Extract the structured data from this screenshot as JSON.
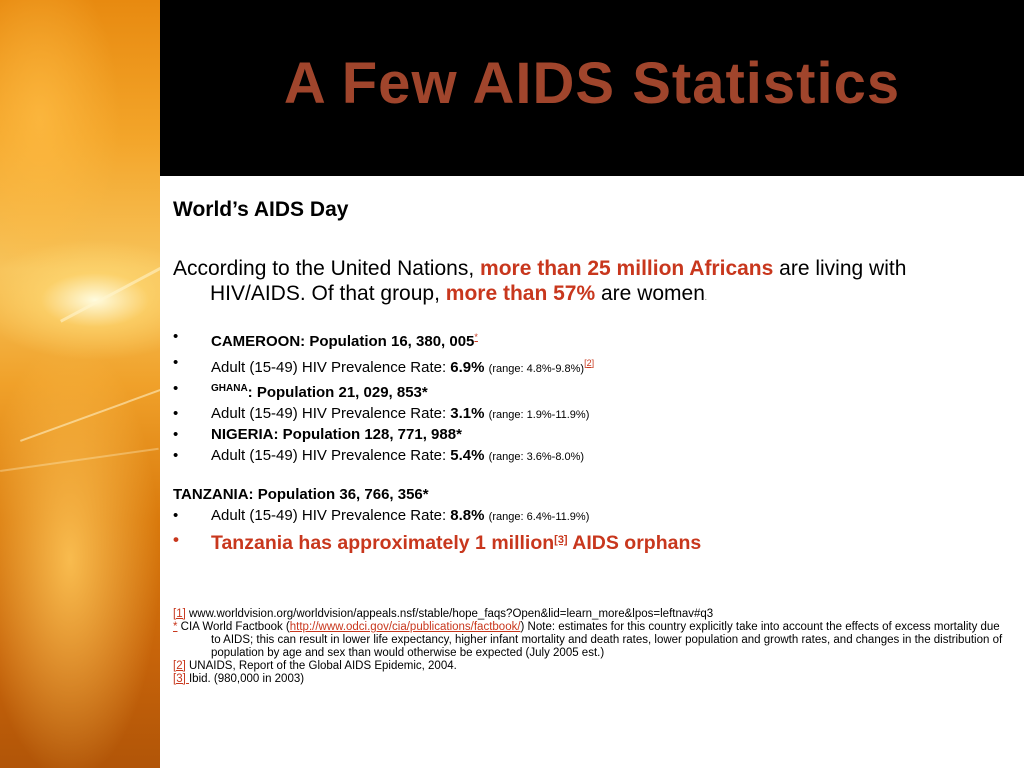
{
  "slide": {
    "title": "A Few AIDS Statistics",
    "subtitle": "World’s AIDS Day",
    "intro": {
      "part1": "According to the United Nations, ",
      "highlight1": "more than 25 million Africans",
      "part2": " are living with HIV/AIDS.  Of that group, ",
      "highlight2": "more than 57%",
      "part3": " are women",
      "trail": "."
    },
    "bullet": "•",
    "items": {
      "cameroon_pop": "CAMEROON:  Population 16, 380, 005",
      "cameroon_pop_ref": "*",
      "cameroon_rate_label": "Adult (15-49) HIV Prevalence Rate: ",
      "cameroon_rate": "6.9%",
      "cameroon_range": "(range: 4.8%-9.8%)",
      "cameroon_range_ref": "[2]",
      "ghana_label": "GHANA",
      "ghana_pop": ":  Population 21, 029, 853*",
      "ghana_rate_label": "Adult (15-49) HIV Prevalence Rate: ",
      "ghana_rate": "3.1%",
      "ghana_range": "(range: 1.9%-11.9%)",
      "nigeria_pop": "NIGERIA: Population 128, 771, 988*",
      "nigeria_rate_label": "Adult (15-49) HIV Prevalence Rate: ",
      "nigeria_rate": "5.4%",
      "nigeria_range": "(range: 3.6%-8.0%)",
      "tanzania_pop": "TANZANIA:  Population 36, 766, 356*",
      "tanzania_rate_label": "Adult (15-49) HIV Prevalence Rate: ",
      "tanzania_rate": "8.8%",
      "tanzania_range": "(range: 6.4%-11.9%)",
      "orphans_part1": "Tanzania has approximately 1 million",
      "orphans_ref": "[3]",
      "orphans_part2": " AIDS orphans"
    },
    "footnotes": {
      "f1_ref": "[1]",
      "f1_text": " www.worldvision.org/worldvision/appeals.nsf/stable/hope_faqs?Open&lid=learn_more&lpos=leftnav#q3",
      "f2_ref": "*",
      "f2_text_a": " CIA World Factbook (",
      "f2_link": "http://www.odci.gov/cia/publications/factbook/",
      "f2_text_b": ") Note: estimates for this country explicitly take into account the effects of excess mortality due to AIDS; this can result in lower life expectancy, higher infant mortality and death rates, lower population and growth rates, and changes in the distribution of population by age and sex than would otherwise be expected (July 2005 est.)",
      "f3_ref": "[2]",
      "f3_text": " UNAIDS, Report of the Global AIDS Epidemic, 2004.",
      "f4_ref": "[3] ",
      "f4_text": "Ibid. (980,000 in 2003)"
    },
    "colors": {
      "title": "#a0452c",
      "highlight": "#c8371d",
      "header_band": "#000000"
    }
  }
}
